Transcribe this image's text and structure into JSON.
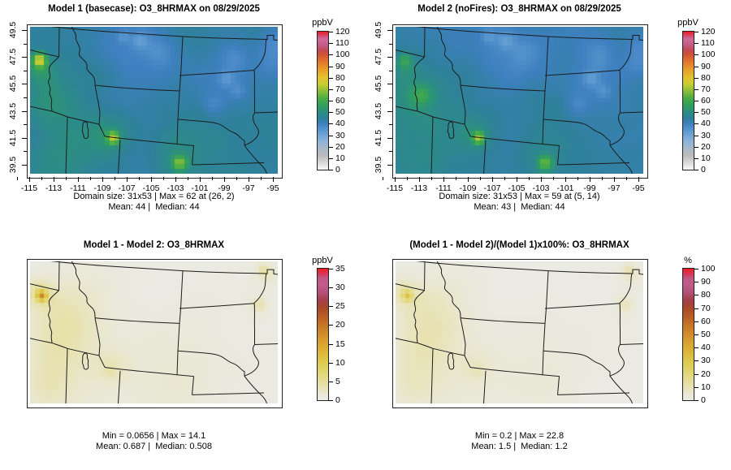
{
  "figure": {
    "background": "#ffffff",
    "variable": "O3_8HRMAX",
    "date": "08/29/2025"
  },
  "palettes": {
    "main": {
      "norm": false,
      "stops": [
        [
          0,
          "#f7f7f5"
        ],
        [
          6,
          "#d8d8d6"
        ],
        [
          12,
          "#bbbcbe"
        ],
        [
          18,
          "#a9bacb"
        ],
        [
          25,
          "#8cb2d8"
        ],
        [
          33,
          "#609bd2"
        ],
        [
          40,
          "#3e80c0"
        ],
        [
          44,
          "#2f809c"
        ],
        [
          49,
          "#2c8b88"
        ],
        [
          55,
          "#2f9d62"
        ],
        [
          62,
          "#49ae45"
        ],
        [
          68,
          "#88bd3a"
        ],
        [
          74,
          "#c4cd33"
        ],
        [
          80,
          "#e3c32d"
        ],
        [
          87,
          "#e89e2b"
        ],
        [
          94,
          "#e2762d"
        ],
        [
          100,
          "#d05532"
        ],
        [
          104,
          "#c34a55"
        ],
        [
          109,
          "#c55c88"
        ],
        [
          114,
          "#cb6d9d"
        ],
        [
          117,
          "#d4466b"
        ],
        [
          120,
          "#ee1c25"
        ]
      ]
    },
    "hot": {
      "norm": true,
      "stops": [
        [
          0,
          "#ebebe9"
        ],
        [
          0.05,
          "#e9e7cf"
        ],
        [
          0.12,
          "#e7e0a6"
        ],
        [
          0.2,
          "#e2d878"
        ],
        [
          0.29,
          "#ddca4e"
        ],
        [
          0.38,
          "#dcb337"
        ],
        [
          0.47,
          "#d6972e"
        ],
        [
          0.56,
          "#c87a28"
        ],
        [
          0.63,
          "#bb5f27"
        ],
        [
          0.7,
          "#a94a28"
        ],
        [
          0.76,
          "#a43e49"
        ],
        [
          0.82,
          "#b35077"
        ],
        [
          0.88,
          "#bf5d8e"
        ],
        [
          0.93,
          "#c05883"
        ],
        [
          0.96,
          "#d43a60"
        ],
        [
          1,
          "#ee1c25"
        ]
      ]
    }
  },
  "panels": [
    {
      "title": "Model 1 (basecase): O3_8HRMAX on 08/29/2025",
      "caption1": "Domain size: 31x53 | Max = 62 at (26, 2)",
      "caption2": "Mean: 44 |  Median: 44",
      "colorbar": {
        "label": "ppbV",
        "ticks": [
          0,
          10,
          20,
          30,
          40,
          50,
          60,
          70,
          80,
          90,
          100,
          110,
          120
        ]
      },
      "axes": {
        "x_ticks": [
          -115,
          -113,
          -111,
          -109,
          -107,
          -105,
          -103,
          -101,
          -99,
          -97,
          -95
        ],
        "y_ticks": [
          49.5,
          47.5,
          45.5,
          43.5,
          41.5,
          39.5
        ]
      },
      "field": {
        "palette": "main",
        "vmax": 120,
        "base": 44,
        "noise": 2.6,
        "seed": 11,
        "blobs": [
          [
            1.5,
            6.5,
            1.0,
            28
          ],
          [
            1.8,
            8,
            1.8,
            8
          ],
          [
            3,
            13,
            4,
            4
          ],
          [
            17.3,
            23,
            0.9,
            26
          ],
          [
            16,
            22,
            3,
            6
          ],
          [
            31.5,
            28.3,
            1.1,
            20
          ],
          [
            31,
            27,
            3.5,
            5
          ],
          [
            8,
            24,
            6,
            4
          ],
          [
            3,
            29,
            4,
            3
          ],
          [
            5,
            16,
            4,
            3
          ],
          [
            22,
            3.5,
            7,
            -5
          ],
          [
            23,
            2.5,
            1.2,
            -7
          ],
          [
            19.5,
            1.5,
            1.0,
            -6
          ],
          [
            27,
            5,
            2,
            -4
          ],
          [
            40,
            11,
            6,
            -4
          ],
          [
            41.5,
            10.5,
            1.2,
            -7
          ],
          [
            44,
            13,
            1.0,
            -5
          ],
          [
            38.5,
            16,
            1.5,
            -4
          ],
          [
            43,
            6,
            2,
            -4
          ],
          [
            51.5,
            7,
            2.5,
            -5
          ],
          [
            52,
            3,
            2,
            -4
          ],
          [
            36,
            20,
            5,
            2
          ],
          [
            14,
            10,
            3,
            2
          ]
        ]
      }
    },
    {
      "title": "Model 2 (noFires): O3_8HRMAX on 08/29/2025",
      "caption1": "Domain size: 31x53 | Max = 59 at (5, 14)",
      "caption2": "Mean: 43 |  Median: 44",
      "colorbar": {
        "label": "ppbV",
        "ticks": [
          0,
          10,
          20,
          30,
          40,
          50,
          60,
          70,
          80,
          90,
          100,
          110,
          120
        ]
      },
      "axes": {
        "x_ticks": [
          -115,
          -113,
          -111,
          -109,
          -107,
          -105,
          -103,
          -101,
          -99,
          -97,
          -95
        ],
        "y_ticks": [
          49.5,
          47.5,
          45.5,
          43.5,
          41.5,
          39.5
        ]
      },
      "field": {
        "palette": "main",
        "vmax": 120,
        "base": 43.5,
        "noise": 2.6,
        "seed": 12,
        "blobs": [
          [
            1.5,
            6.5,
            1.0,
            11
          ],
          [
            1.8,
            8,
            1.8,
            5
          ],
          [
            3,
            13,
            4,
            4
          ],
          [
            5,
            14,
            1.5,
            8
          ],
          [
            17.3,
            23,
            0.9,
            24
          ],
          [
            16,
            22,
            3,
            6
          ],
          [
            31.5,
            28.3,
            1.1,
            18
          ],
          [
            31,
            27,
            3.5,
            5
          ],
          [
            8,
            24,
            6,
            4
          ],
          [
            3,
            29,
            4,
            3
          ],
          [
            5,
            16,
            4,
            3
          ],
          [
            22,
            3.5,
            7,
            -5
          ],
          [
            23,
            2.5,
            1.2,
            -7
          ],
          [
            19.5,
            1.5,
            1.0,
            -6
          ],
          [
            27,
            5,
            2,
            -4
          ],
          [
            40,
            11,
            6,
            -4
          ],
          [
            41.5,
            10.5,
            1.2,
            -7
          ],
          [
            44,
            13,
            1.0,
            -5
          ],
          [
            38.5,
            16,
            1.5,
            -4
          ],
          [
            43,
            6,
            2,
            -4
          ],
          [
            51.5,
            7,
            2.5,
            -5
          ],
          [
            52,
            3,
            2,
            -4
          ],
          [
            36,
            20,
            5,
            2
          ],
          [
            14,
            10,
            3,
            2
          ]
        ]
      }
    },
    {
      "title": "Model 1 - Model 2: O3_8HRMAX",
      "caption1": "Min = 0.0656 | Max = 14.1",
      "caption2": "Mean: 0.687 |  Median: 0.508",
      "colorbar": {
        "label": "ppbV",
        "ticks": [
          0,
          5,
          10,
          15,
          20,
          25,
          30,
          35
        ]
      },
      "axes": null,
      "field": {
        "palette": "hot",
        "vmax": 35,
        "base": 0.45,
        "noise": 0.22,
        "seed": 21,
        "blobs": [
          [
            2,
            7,
            0.8,
            13
          ],
          [
            2,
            7,
            2,
            2.5
          ],
          [
            1,
            5.5,
            1.5,
            2
          ],
          [
            6,
            10,
            5,
            2.0
          ],
          [
            8,
            15,
            5,
            1.6
          ],
          [
            4,
            20,
            4,
            1.4
          ],
          [
            3,
            27,
            3.5,
            1.8
          ],
          [
            9,
            25,
            6,
            1.0
          ],
          [
            17,
            22.5,
            2.5,
            1.6
          ],
          [
            16.8,
            23.5,
            1.0,
            1.2
          ],
          [
            24,
            23,
            8,
            0.7
          ],
          [
            32,
            27,
            5,
            0.7
          ],
          [
            14,
            4,
            4,
            0.5
          ],
          [
            49.5,
            1.5,
            0.9,
            3.5
          ],
          [
            50.5,
            2.5,
            1.8,
            1.2
          ],
          [
            48.5,
            9,
            0.9,
            2.6
          ],
          [
            48.5,
            9,
            2,
            0.8
          ],
          [
            36,
            14,
            8,
            0.25
          ]
        ]
      }
    },
    {
      "title": "(Model 1 - Model 2)/(Model 1)x100%: O3_8HRMAX",
      "caption1": "Min = 0.2 | Max = 22.8",
      "caption2": "Mean: 1.5 |  Median: 1.2",
      "colorbar": {
        "label": "%",
        "ticks": [
          0,
          10,
          20,
          30,
          40,
          50,
          60,
          70,
          80,
          90,
          100
        ]
      },
      "axes": null,
      "field": {
        "palette": "hot",
        "vmax": 100,
        "base": 1.2,
        "noise": 0.5,
        "seed": 22,
        "blobs": [
          [
            2,
            7,
            0.8,
            21
          ],
          [
            2,
            7,
            2,
            5
          ],
          [
            1,
            5.5,
            1.5,
            4
          ],
          [
            6,
            10,
            5,
            5
          ],
          [
            8,
            15,
            5,
            4
          ],
          [
            4,
            20,
            4,
            3.5
          ],
          [
            3,
            27,
            3.5,
            4
          ],
          [
            9,
            25,
            6,
            2.5
          ],
          [
            17,
            22.5,
            2.5,
            3.5
          ],
          [
            16.8,
            23.5,
            1.0,
            2.5
          ],
          [
            24,
            23,
            8,
            1.5
          ],
          [
            32,
            27,
            5,
            1.5
          ],
          [
            14,
            4,
            4,
            1.2
          ],
          [
            49.5,
            1.5,
            0.9,
            8
          ],
          [
            50.5,
            2.5,
            1.8,
            3
          ],
          [
            48.5,
            9,
            0.9,
            6
          ],
          [
            48.5,
            9,
            2,
            2
          ],
          [
            36,
            14,
            8,
            0.5
          ]
        ]
      }
    }
  ],
  "chart_data": [
    {
      "type": "heatmap",
      "subtype": "gridded-map",
      "title": "Model 1 (basecase): O3_8HRMAX on 08/29/2025",
      "units": "ppbV",
      "domain_size": "31x53",
      "max": 62,
      "max_at": "(26, 2)",
      "mean": 44,
      "median": 44,
      "x_ticks": [
        -115,
        -113,
        -111,
        -109,
        -107,
        -105,
        -103,
        -101,
        -99,
        -97,
        -95
      ],
      "y_ticks": [
        39.5,
        41.5,
        43.5,
        45.5,
        47.5,
        49.5
      ],
      "colorbar": {
        "label": "ppbV",
        "min": 0,
        "max": 120,
        "step": 10
      },
      "pattern": "mostly 40-50 ppbV blue-teal; blue lows over N Montana and E South Dakota; yellow-green highs ~62 near -115,47.6, NW Utah and S Wyoming/NE Colorado"
    },
    {
      "type": "heatmap",
      "subtype": "gridded-map",
      "title": "Model 2 (noFires): O3_8HRMAX on 08/29/2025",
      "units": "ppbV",
      "domain_size": "31x53",
      "max": 59,
      "max_at": "(5, 14)",
      "mean": 43,
      "median": 44,
      "x_ticks": [
        -115,
        -113,
        -111,
        -109,
        -107,
        -105,
        -103,
        -101,
        -99,
        -97,
        -95
      ],
      "y_ticks": [
        39.5,
        41.5,
        43.5,
        45.5,
        47.5,
        49.5
      ],
      "colorbar": {
        "label": "ppbV",
        "min": 0,
        "max": 120,
        "step": 10
      },
      "pattern": "same as Model 1 but without the strong fire-driven maximum at far west"
    },
    {
      "type": "heatmap",
      "subtype": "gridded-map-difference",
      "title": "Model 1 - Model 2: O3_8HRMAX",
      "units": "ppbV",
      "min": 0.0656,
      "max": 14.1,
      "mean": 0.687,
      "median": 0.508,
      "colorbar": {
        "label": "ppbV",
        "min": 0,
        "max": 35,
        "step": 5
      },
      "pattern": "near-zero gray over plains; pale-yellow 1-4 ppbV over Idaho/Utah; orange spot ~14 ppbV near -115,47.5; small yellow spots at ND/MN border"
    },
    {
      "type": "heatmap",
      "subtype": "gridded-map-percent-difference",
      "title": "(Model 1 - Model 2)/(Model 1)x100%: O3_8HRMAX",
      "units": "%",
      "min": 0.2,
      "max": 22.8,
      "mean": 1.5,
      "median": 1.2,
      "colorbar": {
        "label": "%",
        "min": 0,
        "max": 100,
        "step": 10
      },
      "pattern": "near-zero gray over plains; pale-yellow few % over Idaho/Utah; yellow spot ~22% near -115,47.5"
    }
  ]
}
